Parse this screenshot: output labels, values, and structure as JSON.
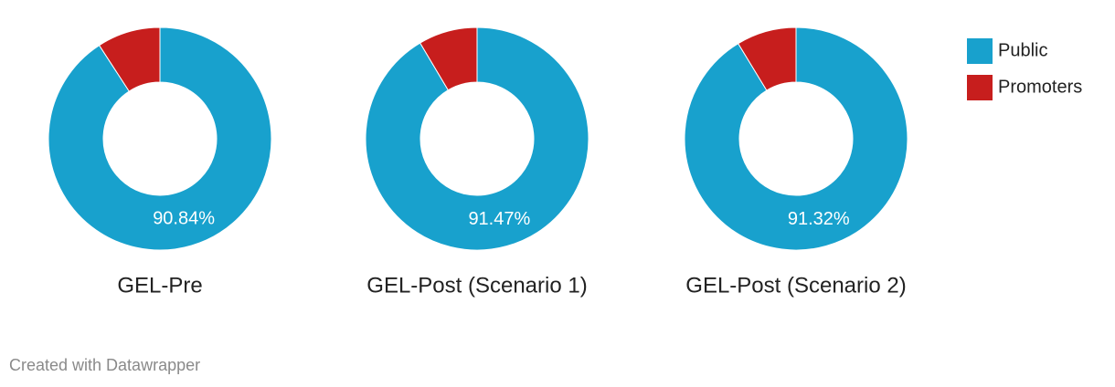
{
  "chart_data": [
    {
      "type": "donut",
      "title": "GEL-Pre",
      "categories": [
        "Public",
        "Promoters"
      ],
      "colors": [
        "#18a1cd",
        "#c71e1d"
      ],
      "values": [
        90.84,
        9.16
      ],
      "value_labels": [
        "90.84%",
        null
      ]
    },
    {
      "type": "donut",
      "title": "GEL-Post (Scenario 1)",
      "categories": [
        "Public",
        "Promoters"
      ],
      "colors": [
        "#18a1cd",
        "#c71e1d"
      ],
      "values": [
        91.47,
        8.53
      ],
      "value_labels": [
        "91.47%",
        null
      ]
    },
    {
      "type": "donut",
      "title": "GEL-Post (Scenario 2)",
      "categories": [
        "Public",
        "Promoters"
      ],
      "colors": [
        "#18a1cd",
        "#c71e1d"
      ],
      "values": [
        91.32,
        8.68
      ],
      "value_labels": [
        "91.32%",
        null
      ]
    }
  ],
  "footer": "Created with Datawrapper"
}
